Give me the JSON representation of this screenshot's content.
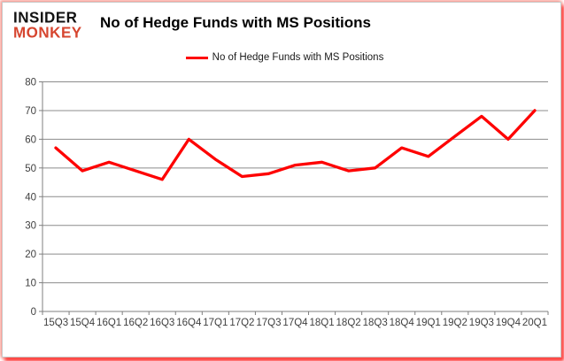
{
  "logo": {
    "line1": "INSIDER",
    "line2": "MONKEY"
  },
  "header": {
    "title": "No of Hedge Funds with MS Positions"
  },
  "legend": {
    "label": "No of Hedge Funds with MS Positions"
  },
  "colors": {
    "series_line": "#fe0000",
    "grid": "#8c8c8c",
    "axis": "#7f7f7f",
    "tick_label": "#3f3f3f",
    "logo_accent": "#d6452f"
  },
  "chart_data": {
    "type": "line",
    "title": "No of Hedge Funds with MS Positions",
    "categories": [
      "15Q3",
      "15Q4",
      "16Q1",
      "16Q2",
      "16Q3",
      "16Q4",
      "17Q1",
      "17Q2",
      "17Q3",
      "17Q4",
      "18Q1",
      "18Q2",
      "18Q3",
      "18Q4",
      "19Q1",
      "19Q2",
      "19Q3",
      "19Q4",
      "20Q1"
    ],
    "series": [
      {
        "name": "No of Hedge Funds with MS Positions",
        "color": "#fe0000",
        "values": [
          57,
          49,
          52,
          49,
          46,
          60,
          53,
          47,
          48,
          51,
          52,
          49,
          50,
          57,
          54,
          61,
          68,
          60,
          70
        ]
      }
    ],
    "xlabel": "",
    "ylabel": "",
    "ylim": [
      0,
      80
    ],
    "yticks": [
      0,
      10,
      20,
      30,
      40,
      50,
      60,
      70,
      80
    ],
    "grid": true,
    "legend_position": "top-center"
  }
}
